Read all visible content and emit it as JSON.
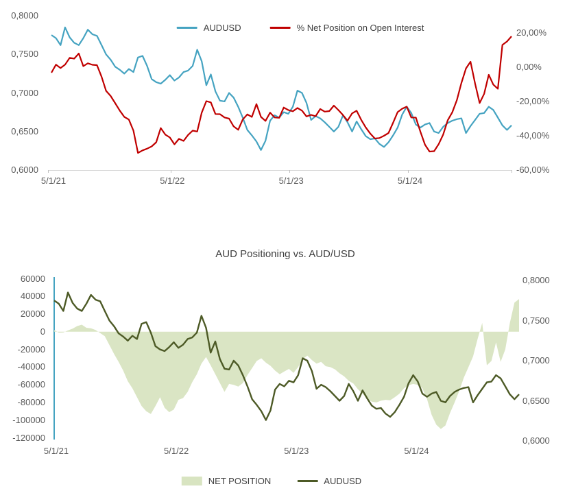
{
  "page": {
    "background": "#ffffff"
  },
  "top_chart": {
    "legend": [
      {
        "label": "AUDUSD",
        "color": "#45a3c1",
        "marker": "line"
      },
      {
        "label": "% Net Position on Open Interest",
        "color": "#c00000",
        "marker": "line"
      }
    ]
  },
  "bottom_chart": {
    "title": "AUD Positioning vs. AUD/USD",
    "legend": [
      {
        "label": "NET POSITION",
        "color": "#d8e4c1",
        "marker": "area-swatch"
      },
      {
        "label": "AUDUSD",
        "color": "#4d5a26",
        "marker": "line"
      }
    ]
  },
  "chart_data": [
    {
      "type": "line",
      "title": "",
      "legend_position": "top",
      "x_axis": {
        "tick_labels": [
          "5/1/21",
          "5/1/22",
          "5/1/23",
          "5/1/24"
        ],
        "tick_weeks": [
          0,
          52.18,
          104.36,
          156.54
        ],
        "x_start_week": 0,
        "x_end_week": 202,
        "x_step_weeks_between_points": 2
      },
      "y_left": {
        "min": 0.6,
        "max": 0.8,
        "tick_values": [
          0.8,
          0.75,
          0.7,
          0.65,
          0.6
        ],
        "tick_labels": [
          "0,8000",
          "0,7500",
          "0,7000",
          "0,6500",
          "0,6000"
        ]
      },
      "y_right": {
        "min": -60,
        "max": 20,
        "tick_values": [
          20,
          0,
          -20,
          -40,
          -60
        ],
        "tick_labels": [
          "20,00%",
          "0,00%",
          "-20,00%",
          "-40,00%",
          "-60,00%"
        ]
      },
      "series": [
        {
          "name": "AUDUSD",
          "axis": "left",
          "color": "#45a3c1",
          "values": [
            0.775,
            0.771,
            0.762,
            0.785,
            0.772,
            0.765,
            0.762,
            0.771,
            0.782,
            0.776,
            0.774,
            0.762,
            0.75,
            0.743,
            0.734,
            0.73,
            0.725,
            0.731,
            0.727,
            0.746,
            0.748,
            0.735,
            0.718,
            0.714,
            0.712,
            0.717,
            0.723,
            0.716,
            0.72,
            0.727,
            0.729,
            0.735,
            0.756,
            0.741,
            0.71,
            0.724,
            0.702,
            0.69,
            0.689,
            0.7,
            0.694,
            0.682,
            0.668,
            0.652,
            0.645,
            0.637,
            0.626,
            0.638,
            0.664,
            0.671,
            0.668,
            0.675,
            0.673,
            0.682,
            0.703,
            0.7,
            0.687,
            0.665,
            0.67,
            0.667,
            0.662,
            0.656,
            0.65,
            0.656,
            0.671,
            0.662,
            0.65,
            0.663,
            0.653,
            0.644,
            0.64,
            0.641,
            0.634,
            0.63,
            0.636,
            0.645,
            0.655,
            0.672,
            0.682,
            0.674,
            0.659,
            0.655,
            0.659,
            0.661,
            0.65,
            0.648,
            0.656,
            0.661,
            0.664,
            0.666,
            0.667,
            0.648,
            0.657,
            0.665,
            0.673,
            0.674,
            0.682,
            0.678,
            0.668,
            0.658,
            0.652,
            0.658
          ]
        },
        {
          "name": "% Net Position on Open Interest",
          "axis": "right",
          "color": "#c00000",
          "values": [
            -3.2,
            1.5,
            -0.5,
            1.5,
            5.5,
            5.0,
            8.0,
            0.6,
            2.3,
            1.4,
            1.2,
            -5.5,
            -13.8,
            -16.8,
            -21.0,
            -25.3,
            -29.0,
            -30.5,
            -37.0,
            -50.0,
            -48.5,
            -47.5,
            -46.2,
            -43.8,
            -35.5,
            -39.3,
            -41.0,
            -45.0,
            -41.8,
            -43.0,
            -39.5,
            -37.0,
            -37.5,
            -26.5,
            -19.8,
            -20.5,
            -27.3,
            -27.4,
            -29.3,
            -30.0,
            -34.5,
            -36.5,
            -30.5,
            -27.5,
            -29.0,
            -21.5,
            -29.0,
            -31.3,
            -26.5,
            -29.3,
            -29.5,
            -23.5,
            -25.0,
            -25.7,
            -23.8,
            -25.3,
            -28.7,
            -27.8,
            -28.6,
            -24.4,
            -25.9,
            -25.6,
            -22.4,
            -25.0,
            -27.9,
            -31.2,
            -26.9,
            -25.4,
            -30.7,
            -35.1,
            -38.7,
            -41.6,
            -41.3,
            -40.0,
            -38.4,
            -32.4,
            -26.2,
            -24.2,
            -23.0,
            -29.3,
            -29.4,
            -37.6,
            -45.2,
            -49.2,
            -49.0,
            -44.9,
            -39.3,
            -30.9,
            -26.3,
            -19.2,
            -9.2,
            -0.7,
            3.2,
            -9.6,
            -20.9,
            -15.5,
            -4.4,
            -10.1,
            -12.6,
            13.0,
            15.0,
            18.0
          ]
        }
      ]
    },
    {
      "type": "area+line",
      "title": "AUD Positioning vs. AUD/USD",
      "legend_position": "bottom",
      "x_axis": {
        "tick_labels": [
          "5/1/21",
          "5/1/22",
          "5/1/23",
          "5/1/24"
        ],
        "tick_weeks": [
          0,
          52.18,
          104.36,
          156.54
        ],
        "x_start_week": 0,
        "x_end_week": 202,
        "x_step_weeks_between_points": 2
      },
      "y_left": {
        "min": -120000,
        "max": 60000,
        "tick_values": [
          60000,
          40000,
          20000,
          0,
          -20000,
          -40000,
          -60000,
          -80000,
          -100000,
          -120000
        ],
        "tick_labels": [
          "60000",
          "40000",
          "20000",
          "0",
          "-20000",
          "-40000",
          "-60000",
          "-80000",
          "-100000",
          "-120000"
        ]
      },
      "y_right": {
        "min": 0.6,
        "max": 0.8,
        "tick_values": [
          0.8,
          0.75,
          0.7,
          0.65,
          0.6
        ],
        "tick_labels": [
          "0,8000",
          "0,7500",
          "0,7000",
          "0,6500",
          "0,6000"
        ]
      },
      "series": [
        {
          "name": "NET POSITION",
          "type": "area",
          "axis": "left",
          "color": "#d8e4c1",
          "values": [
            2000,
            -1000,
            -800,
            1500,
            3500,
            6500,
            8000,
            4500,
            4000,
            2000,
            -1500,
            -5000,
            -15000,
            -25000,
            -34000,
            -44000,
            -56000,
            -64000,
            -74000,
            -84000,
            -90000,
            -93000,
            -84000,
            -74000,
            -86000,
            -91000,
            -88000,
            -77000,
            -75000,
            -68000,
            -57000,
            -48000,
            -36000,
            -28500,
            -38000,
            -48000,
            -58000,
            -68000,
            -59000,
            -60000,
            -62000,
            -58000,
            -49000,
            -41000,
            -33000,
            -30000,
            -35000,
            -38500,
            -44000,
            -48000,
            -45000,
            -42000,
            -46500,
            -40000,
            -31000,
            -27000,
            -32000,
            -36000,
            -34000,
            -39000,
            -40000,
            -42500,
            -47000,
            -50500,
            -55500,
            -58500,
            -65000,
            -70000,
            -76000,
            -79000,
            -80000,
            -78000,
            -77000,
            -77500,
            -74000,
            -70000,
            -64000,
            -60500,
            -59000,
            -60000,
            -64000,
            -76000,
            -94000,
            -105000,
            -110000,
            -106000,
            -92000,
            -80000,
            -67000,
            -52000,
            -40000,
            -28000,
            -8000,
            10000,
            -38000,
            -33000,
            -12000,
            -34000,
            -20000,
            10000,
            33000,
            37000
          ]
        },
        {
          "name": "AUDUSD",
          "type": "line",
          "axis": "right",
          "color": "#4d5a26",
          "values": [
            0.775,
            0.771,
            0.762,
            0.785,
            0.772,
            0.765,
            0.762,
            0.771,
            0.782,
            0.776,
            0.774,
            0.762,
            0.75,
            0.743,
            0.734,
            0.73,
            0.725,
            0.731,
            0.727,
            0.746,
            0.748,
            0.735,
            0.718,
            0.714,
            0.712,
            0.717,
            0.723,
            0.716,
            0.72,
            0.727,
            0.729,
            0.735,
            0.756,
            0.741,
            0.71,
            0.724,
            0.702,
            0.69,
            0.689,
            0.7,
            0.694,
            0.682,
            0.668,
            0.652,
            0.645,
            0.637,
            0.626,
            0.638,
            0.664,
            0.671,
            0.668,
            0.675,
            0.673,
            0.682,
            0.703,
            0.7,
            0.687,
            0.665,
            0.67,
            0.667,
            0.662,
            0.656,
            0.65,
            0.656,
            0.671,
            0.662,
            0.65,
            0.663,
            0.653,
            0.644,
            0.64,
            0.641,
            0.634,
            0.63,
            0.636,
            0.645,
            0.655,
            0.672,
            0.682,
            0.674,
            0.659,
            0.655,
            0.659,
            0.661,
            0.65,
            0.648,
            0.656,
            0.661,
            0.664,
            0.666,
            0.667,
            0.648,
            0.657,
            0.665,
            0.673,
            0.674,
            0.682,
            0.678,
            0.668,
            0.658,
            0.652,
            0.658
          ]
        }
      ]
    }
  ]
}
